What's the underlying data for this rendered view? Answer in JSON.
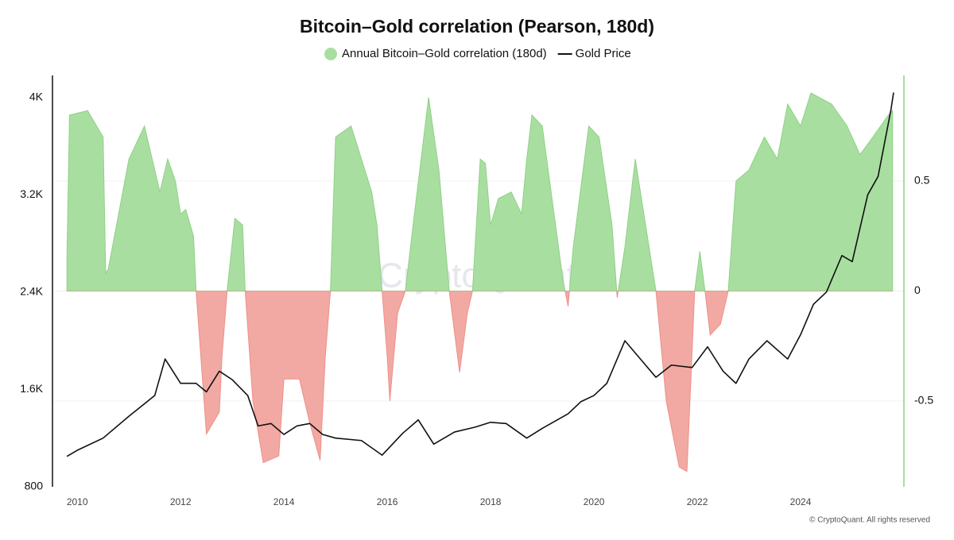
{
  "chart_data": {
    "type": "combo",
    "title": "Bitcoin–Gold correlation (Pearson, 180d)",
    "watermark": "CryptoQuant",
    "copyright": "© CryptoQuant. All rights reserved",
    "xlim": [
      2009.52,
      2026.0
    ],
    "xticks": [
      2010,
      2012,
      2014,
      2016,
      2018,
      2020,
      2022,
      2024
    ],
    "ylim": [
      800,
      4180
    ],
    "yticks": [
      800,
      {
        "value": 1600,
        "label": "1.6K"
      },
      {
        "value": 2400,
        "label": "2.4K"
      },
      {
        "value": 3200,
        "label": "3.2K"
      },
      {
        "value": 4000,
        "label": "4K"
      }
    ],
    "y2lim": [
      -0.89,
      0.98
    ],
    "y2ticks": [
      -0.5,
      0,
      0.5
    ],
    "series": [
      {
        "name": "Annual Bitcoin–Gold correlation (180d)",
        "type": "area",
        "axis": "y2",
        "color": "#a8dfa0",
        "negative_color": "#f2a9a3",
        "x": [
          2009.8,
          2009.85,
          2010.2,
          2010.5,
          2010.55,
          2010.6,
          2011.0,
          2011.3,
          2011.5,
          2011.6,
          2011.75,
          2011.9,
          2012.0,
          2012.1,
          2012.25,
          2012.3,
          2012.5,
          2012.75,
          2012.8,
          2012.9,
          2013.05,
          2013.2,
          2013.25,
          2013.4,
          2013.6,
          2013.9,
          2014.0,
          2014.3,
          2014.5,
          2014.7,
          2014.8,
          2014.9,
          2015.0,
          2015.3,
          2015.5,
          2015.7,
          2015.8,
          2015.9,
          2016.0,
          2016.05,
          2016.2,
          2016.35,
          2016.5,
          2016.8,
          2017.0,
          2017.2,
          2017.4,
          2017.55,
          2017.65,
          2017.8,
          2017.9,
          2018.0,
          2018.15,
          2018.4,
          2018.6,
          2018.7,
          2018.8,
          2019.0,
          2019.2,
          2019.4,
          2019.5,
          2019.6,
          2019.9,
          2020.1,
          2020.35,
          2020.45,
          2020.6,
          2020.8,
          2021.0,
          2021.2,
          2021.4,
          2021.65,
          2021.8,
          2021.95,
          2022.05,
          2022.15,
          2022.25,
          2022.45,
          2022.6,
          2022.75,
          2023.0,
          2023.3,
          2023.55,
          2023.75,
          2024.0,
          2024.2,
          2024.6,
          2024.9,
          2025.15,
          2025.4,
          2025.7,
          2025.78
        ],
        "values": [
          0.15,
          0.8,
          0.82,
          0.7,
          0.08,
          0.1,
          0.6,
          0.75,
          0.55,
          0.45,
          0.6,
          0.5,
          0.35,
          0.37,
          0.25,
          0.0,
          -0.65,
          -0.55,
          -0.3,
          0.0,
          0.33,
          0.3,
          0.0,
          -0.5,
          -0.78,
          -0.75,
          -0.4,
          -0.4,
          -0.6,
          -0.77,
          -0.3,
          0.0,
          0.7,
          0.75,
          0.6,
          0.45,
          0.3,
          0.0,
          -0.3,
          -0.5,
          -0.1,
          0.0,
          0.3,
          0.88,
          0.55,
          0.0,
          -0.37,
          -0.1,
          0.0,
          0.6,
          0.58,
          0.3,
          0.42,
          0.45,
          0.35,
          0.6,
          0.8,
          0.75,
          0.4,
          0.05,
          -0.07,
          0.2,
          0.75,
          0.7,
          0.3,
          -0.03,
          0.2,
          0.6,
          0.3,
          0.0,
          -0.5,
          -0.8,
          -0.82,
          0.0,
          0.18,
          0.0,
          -0.2,
          -0.15,
          0.0,
          0.5,
          0.55,
          0.7,
          0.6,
          0.85,
          0.75,
          0.9,
          0.85,
          0.75,
          0.62,
          0.7,
          0.8,
          0.82
        ]
      },
      {
        "name": "Gold Price",
        "type": "line",
        "axis": "y",
        "color": "#111111",
        "x": [
          2009.8,
          2010.0,
          2010.5,
          2011.0,
          2011.5,
          2011.7,
          2012.0,
          2012.3,
          2012.5,
          2012.75,
          2013.0,
          2013.3,
          2013.5,
          2013.75,
          2014.0,
          2014.25,
          2014.5,
          2014.75,
          2015.0,
          2015.5,
          2015.9,
          2016.3,
          2016.6,
          2016.9,
          2017.3,
          2017.7,
          2018.0,
          2018.3,
          2018.7,
          2019.0,
          2019.5,
          2019.75,
          2020.0,
          2020.25,
          2020.6,
          2020.9,
          2021.2,
          2021.5,
          2021.9,
          2022.2,
          2022.5,
          2022.75,
          2023.0,
          2023.35,
          2023.75,
          2024.0,
          2024.25,
          2024.5,
          2024.8,
          2025.0,
          2025.3,
          2025.5,
          2025.75,
          2025.8
        ],
        "values": [
          1050,
          1100,
          1200,
          1380,
          1550,
          1850,
          1650,
          1650,
          1580,
          1750,
          1680,
          1550,
          1300,
          1320,
          1230,
          1300,
          1320,
          1230,
          1200,
          1180,
          1060,
          1240,
          1350,
          1150,
          1250,
          1290,
          1330,
          1320,
          1200,
          1280,
          1400,
          1500,
          1550,
          1650,
          2000,
          1850,
          1700,
          1800,
          1780,
          1950,
          1750,
          1650,
          1850,
          2000,
          1850,
          2050,
          2300,
          2400,
          2700,
          2650,
          3200,
          3350,
          3900,
          4040
        ]
      }
    ]
  }
}
